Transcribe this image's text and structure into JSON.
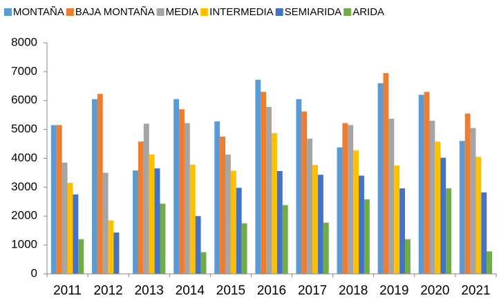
{
  "chart_data": {
    "type": "bar",
    "categories": [
      "2011",
      "2012",
      "2013",
      "2014",
      "2015",
      "2016",
      "2017",
      "2018",
      "2019",
      "2020",
      "2021"
    ],
    "series": [
      {
        "name": "MONTAÑA",
        "color": "#5b9bd5",
        "values": [
          5150,
          6050,
          3580,
          6050,
          5280,
          6720,
          6050,
          4380,
          6600,
          6200,
          4600
        ]
      },
      {
        "name": "BAJA MONTAÑA",
        "color": "#ed7d31",
        "values": [
          5150,
          6230,
          4580,
          5700,
          4750,
          6300,
          5620,
          5220,
          6950,
          6300,
          5550
        ]
      },
      {
        "name": "MEDIA",
        "color": "#a5a5a5",
        "values": [
          3850,
          3500,
          5200,
          5220,
          4130,
          5780,
          4680,
          5150,
          5370,
          5300,
          5050
        ]
      },
      {
        "name": "INTERMEDIA",
        "color": "#ffc000",
        "values": [
          3150,
          1850,
          4130,
          3780,
          3570,
          4870,
          3770,
          4270,
          3750,
          4580,
          4050
        ]
      },
      {
        "name": "SEMIARIDA",
        "color": "#4472c4",
        "values": [
          2750,
          1430,
          3650,
          2000,
          2980,
          3560,
          3430,
          3400,
          2960,
          4020,
          2820
        ]
      },
      {
        "name": "ARIDA",
        "color": "#70ad47",
        "values": [
          1200,
          null,
          2430,
          750,
          1750,
          2380,
          1770,
          2580,
          1200,
          2960,
          780
        ]
      }
    ],
    "ylim": [
      0,
      8000
    ],
    "yticks": [
      0,
      1000,
      2000,
      3000,
      4000,
      5000,
      6000,
      7000,
      8000
    ],
    "grid": false
  }
}
